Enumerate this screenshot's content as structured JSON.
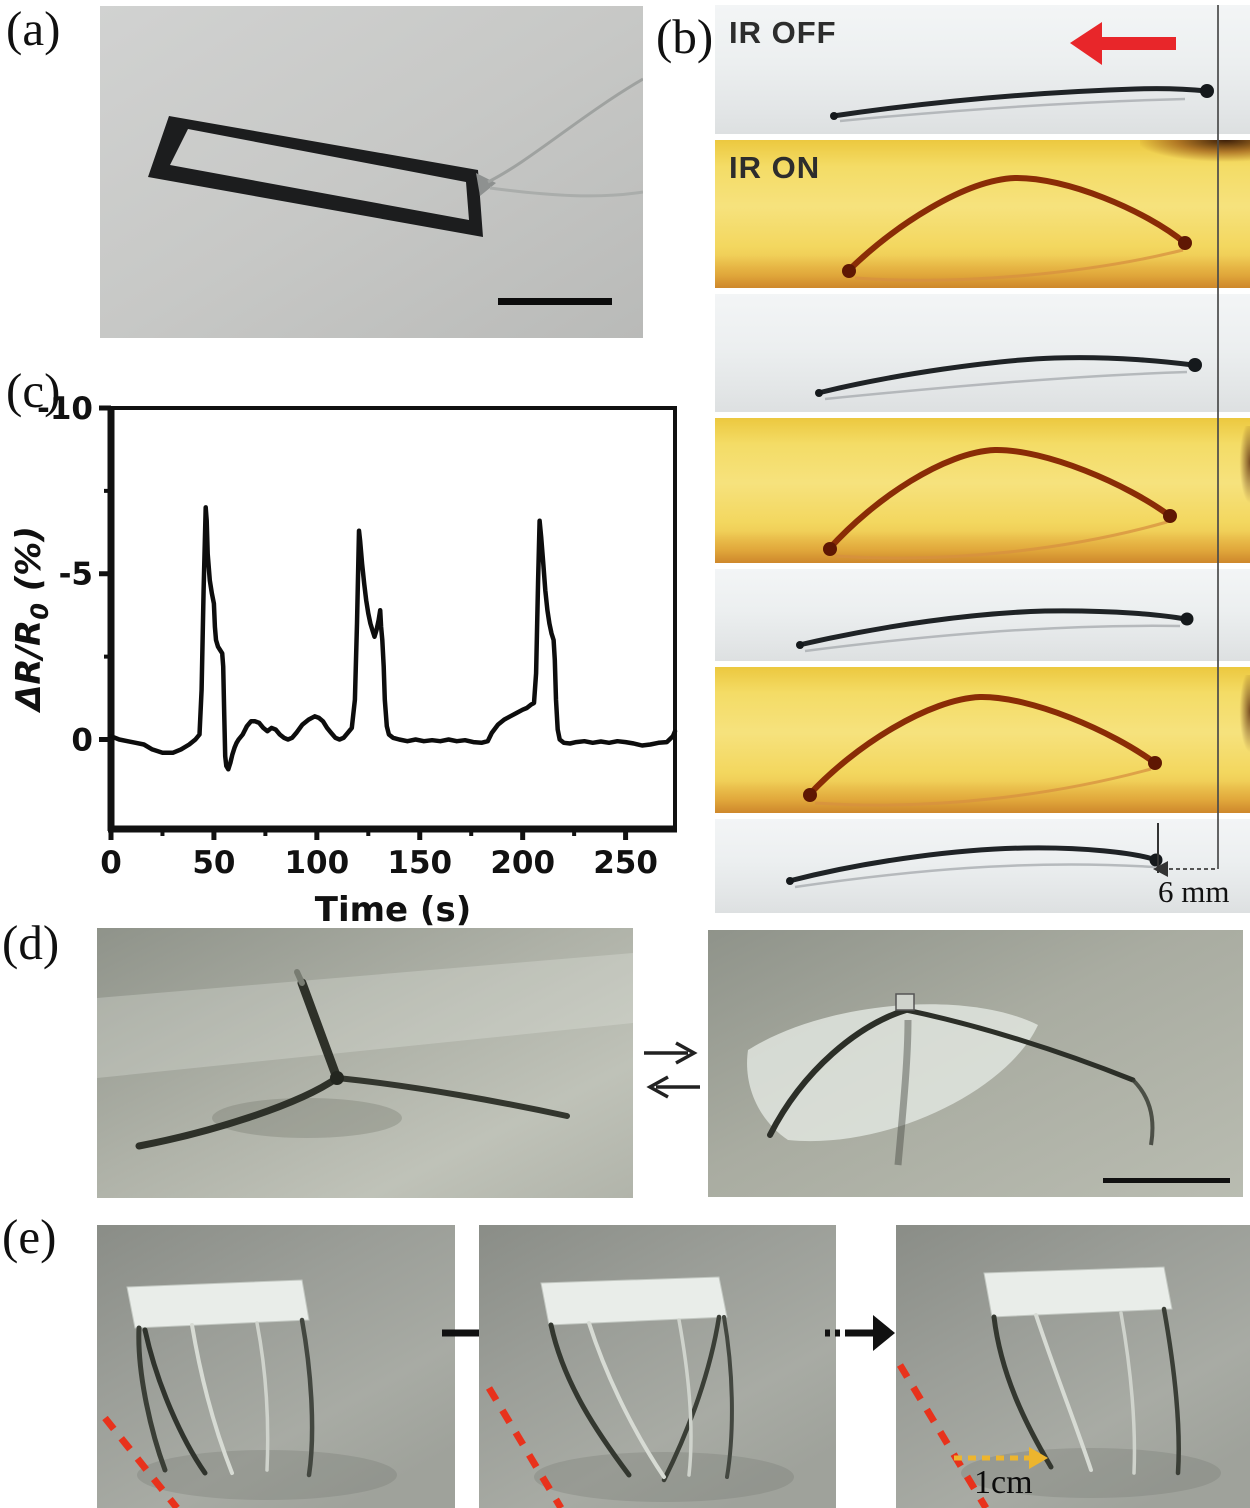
{
  "panel_labels": {
    "a": "(a)",
    "b": "(b)",
    "c": "(c)",
    "d": "(d)",
    "e": "(e)"
  },
  "panel_b": {
    "label_ir_off": "IR OFF",
    "label_ir_on": "IR ON",
    "scale_label": "6 mm",
    "ir_direction": "left",
    "accent_red": "#e8262a"
  },
  "panel_e": {
    "scale_label": "1cm",
    "step_arrow_color": "#111111",
    "trace_color": "#e8321c",
    "displacement_arrow_color": "#edb52e"
  },
  "chart_data": {
    "type": "line",
    "title": "",
    "xlabel": "Time (s)",
    "ylabel": "ΔR/R₀ (%)",
    "xlim": [
      0,
      274
    ],
    "ylim": [
      2.7,
      -10
    ],
    "y_inverted": true,
    "grid": false,
    "xticks": [
      0,
      50,
      100,
      150,
      200,
      250
    ],
    "xminor": [
      25,
      75,
      125,
      175,
      225
    ],
    "yticks": [
      0,
      -5,
      -10
    ],
    "yminor": [
      -2.5,
      -7.5
    ],
    "line_color": "#0d0d0d",
    "series": [
      {
        "name": "ΔR/R₀",
        "points": [
          [
            0,
            -0.1
          ],
          [
            4,
            0
          ],
          [
            8,
            0.05
          ],
          [
            12,
            0.1
          ],
          [
            16,
            0.15
          ],
          [
            20,
            0.3
          ],
          [
            25,
            0.4
          ],
          [
            30,
            0.4
          ],
          [
            34,
            0.3
          ],
          [
            38,
            0.15
          ],
          [
            41,
            0
          ],
          [
            43,
            -0.15
          ],
          [
            44,
            -1.5
          ],
          [
            45,
            -4.5
          ],
          [
            46,
            -7.0
          ],
          [
            46.5,
            -6.6
          ],
          [
            47,
            -5.6
          ],
          [
            48,
            -4.8
          ],
          [
            49,
            -4.4
          ],
          [
            50,
            -4.1
          ],
          [
            50.5,
            -3.4
          ],
          [
            51,
            -3.0
          ],
          [
            52,
            -2.8
          ],
          [
            53,
            -2.7
          ],
          [
            54,
            -2.6
          ],
          [
            54.5,
            -2.2
          ],
          [
            55,
            -0.8
          ],
          [
            55.5,
            0.5
          ],
          [
            56,
            0.8
          ],
          [
            57,
            0.9
          ],
          [
            58,
            0.7
          ],
          [
            59,
            0.45
          ],
          [
            60,
            0.25
          ],
          [
            61,
            0.1
          ],
          [
            62,
            0
          ],
          [
            64,
            -0.15
          ],
          [
            66,
            -0.4
          ],
          [
            68,
            -0.55
          ],
          [
            70,
            -0.55
          ],
          [
            72,
            -0.5
          ],
          [
            74,
            -0.35
          ],
          [
            76,
            -0.25
          ],
          [
            78,
            -0.35
          ],
          [
            80,
            -0.3
          ],
          [
            82,
            -0.15
          ],
          [
            84,
            -0.05
          ],
          [
            86,
            0
          ],
          [
            88,
            -0.05
          ],
          [
            90,
            -0.2
          ],
          [
            93,
            -0.45
          ],
          [
            96,
            -0.6
          ],
          [
            99,
            -0.7
          ],
          [
            101,
            -0.65
          ],
          [
            103,
            -0.55
          ],
          [
            105,
            -0.35
          ],
          [
            107,
            -0.2
          ],
          [
            109,
            -0.05
          ],
          [
            111,
            0
          ],
          [
            113,
            -0.05
          ],
          [
            115,
            -0.2
          ],
          [
            117,
            -0.35
          ],
          [
            118.5,
            -1.2
          ],
          [
            119.5,
            -3.5
          ],
          [
            120.5,
            -6.3
          ],
          [
            121,
            -6.0
          ],
          [
            122,
            -5.3
          ],
          [
            123,
            -4.7
          ],
          [
            124,
            -4.2
          ],
          [
            125,
            -3.8
          ],
          [
            126,
            -3.5
          ],
          [
            127,
            -3.3
          ],
          [
            128,
            -3.1
          ],
          [
            129,
            -3.3
          ],
          [
            130,
            -3.6
          ],
          [
            130.8,
            -3.9
          ],
          [
            131.2,
            -3.4
          ],
          [
            131.8,
            -3.0
          ],
          [
            132.5,
            -2.2
          ],
          [
            133,
            -1.2
          ],
          [
            134,
            -0.4
          ],
          [
            135,
            -0.15
          ],
          [
            137,
            -0.05
          ],
          [
            140,
            0
          ],
          [
            144,
            0.05
          ],
          [
            148,
            0
          ],
          [
            152,
            0.05
          ],
          [
            156,
            0.02
          ],
          [
            160,
            0.05
          ],
          [
            164,
            0
          ],
          [
            168,
            0.05
          ],
          [
            172,
            0.02
          ],
          [
            176,
            0.08
          ],
          [
            180,
            0.1
          ],
          [
            183,
            0.05
          ],
          [
            185,
            -0.2
          ],
          [
            188,
            -0.45
          ],
          [
            191,
            -0.6
          ],
          [
            194,
            -0.7
          ],
          [
            197,
            -0.8
          ],
          [
            200,
            -0.9
          ],
          [
            202,
            -0.95
          ],
          [
            204,
            -1.05
          ],
          [
            205.5,
            -1.1
          ],
          [
            206.5,
            -2.0
          ],
          [
            207.5,
            -4.8
          ],
          [
            208.2,
            -6.6
          ],
          [
            209,
            -6.1
          ],
          [
            210,
            -5.3
          ],
          [
            211,
            -4.5
          ],
          [
            212,
            -3.9
          ],
          [
            213,
            -3.5
          ],
          [
            214,
            -3.2
          ],
          [
            215,
            -3.0
          ],
          [
            215.6,
            -2.4
          ],
          [
            216.2,
            -1.2
          ],
          [
            217,
            -0.3
          ],
          [
            218,
            0
          ],
          [
            220,
            0.1
          ],
          [
            223,
            0.12
          ],
          [
            226,
            0.08
          ],
          [
            230,
            0.05
          ],
          [
            234,
            0.1
          ],
          [
            238,
            0.06
          ],
          [
            242,
            0.1
          ],
          [
            246,
            0.05
          ],
          [
            250,
            0.08
          ],
          [
            254,
            0.12
          ],
          [
            258,
            0.18
          ],
          [
            262,
            0.15
          ],
          [
            266,
            0.1
          ],
          [
            270,
            0.08
          ],
          [
            273,
            -0.1
          ],
          [
            274,
            -0.25
          ]
        ]
      }
    ]
  }
}
